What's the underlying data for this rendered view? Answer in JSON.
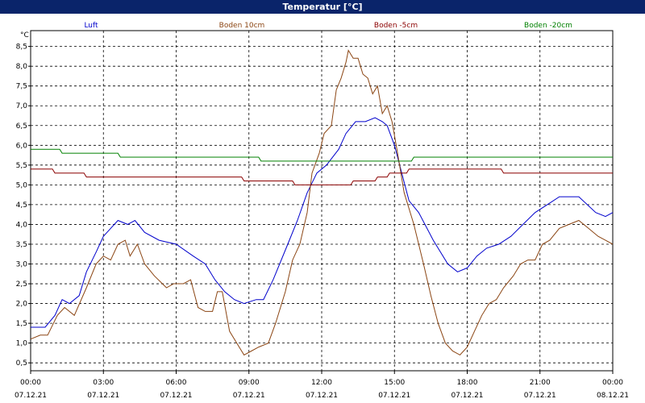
{
  "window": {
    "title": "Temperatur [°C]"
  },
  "chart_data": {
    "type": "line",
    "title": "Temperatur [°C]",
    "ylabel": "°C",
    "ylim": [
      0.3,
      8.9
    ],
    "xlim": [
      0,
      24
    ],
    "yticks": [
      "0,5",
      "1,0",
      "1,5",
      "2,0",
      "2,5",
      "3,0",
      "3,5",
      "4,0",
      "4,5",
      "5,0",
      "5,5",
      "6,0",
      "6,5",
      "7,0",
      "7,5",
      "8,0",
      "8,5"
    ],
    "xticks": [
      {
        "time": "00:00",
        "date": "07.12.21"
      },
      {
        "time": "03:00",
        "date": "07.12.21"
      },
      {
        "time": "06:00",
        "date": "07.12.21"
      },
      {
        "time": "09:00",
        "date": "07.12.21"
      },
      {
        "time": "12:00",
        "date": "07.12.21"
      },
      {
        "time": "15:00",
        "date": "07.12.21"
      },
      {
        "time": "18:00",
        "date": "07.12.21"
      },
      {
        "time": "21:00",
        "date": "07.12.21"
      },
      {
        "time": "00:00",
        "date": "08.12.21"
      }
    ],
    "grid": true,
    "legend_position": "top",
    "series": [
      {
        "name": "Luft",
        "color": "#0000cc",
        "points": [
          [
            0,
            1.4
          ],
          [
            0.6,
            1.4
          ],
          [
            1,
            1.7
          ],
          [
            1.3,
            2.1
          ],
          [
            1.6,
            2.0
          ],
          [
            2,
            2.2
          ],
          [
            2.3,
            2.8
          ],
          [
            2.7,
            3.3
          ],
          [
            3,
            3.7
          ],
          [
            3.3,
            3.9
          ],
          [
            3.6,
            4.1
          ],
          [
            4,
            4.0
          ],
          [
            4.3,
            4.1
          ],
          [
            4.7,
            3.8
          ],
          [
            5.3,
            3.6
          ],
          [
            6,
            3.5
          ],
          [
            6.7,
            3.2
          ],
          [
            7.2,
            3.0
          ],
          [
            7.6,
            2.6
          ],
          [
            8,
            2.3
          ],
          [
            8.4,
            2.1
          ],
          [
            8.8,
            2.0
          ],
          [
            9.3,
            2.1
          ],
          [
            9.6,
            2.1
          ],
          [
            10,
            2.6
          ],
          [
            10.6,
            3.5
          ],
          [
            11,
            4.1
          ],
          [
            11.4,
            4.8
          ],
          [
            11.8,
            5.3
          ],
          [
            12.2,
            5.5
          ],
          [
            12.7,
            5.9
          ],
          [
            13,
            6.3
          ],
          [
            13.4,
            6.6
          ],
          [
            13.8,
            6.6
          ],
          [
            14.2,
            6.7
          ],
          [
            14.5,
            6.6
          ],
          [
            14.7,
            6.5
          ],
          [
            15,
            6.0
          ],
          [
            15.3,
            5.3
          ],
          [
            15.6,
            4.6
          ],
          [
            16,
            4.3
          ],
          [
            16.6,
            3.6
          ],
          [
            17.2,
            3.0
          ],
          [
            17.6,
            2.8
          ],
          [
            18,
            2.9
          ],
          [
            18.4,
            3.2
          ],
          [
            18.8,
            3.4
          ],
          [
            19.3,
            3.5
          ],
          [
            19.8,
            3.7
          ],
          [
            20.3,
            4.0
          ],
          [
            20.8,
            4.3
          ],
          [
            21.3,
            4.5
          ],
          [
            21.8,
            4.7
          ],
          [
            22.6,
            4.7
          ],
          [
            23.3,
            4.3
          ],
          [
            23.7,
            4.2
          ],
          [
            24,
            4.3
          ]
        ]
      },
      {
        "name": "Boden 10cm",
        "color": "#8b4513",
        "points": [
          [
            0,
            1.1
          ],
          [
            0.4,
            1.2
          ],
          [
            0.7,
            1.2
          ],
          [
            1.1,
            1.7
          ],
          [
            1.4,
            1.9
          ],
          [
            1.8,
            1.7
          ],
          [
            2.3,
            2.4
          ],
          [
            2.7,
            3.0
          ],
          [
            3,
            3.2
          ],
          [
            3.3,
            3.1
          ],
          [
            3.6,
            3.5
          ],
          [
            3.9,
            3.6
          ],
          [
            4.1,
            3.2
          ],
          [
            4.4,
            3.5
          ],
          [
            4.7,
            3.0
          ],
          [
            5.1,
            2.7
          ],
          [
            5.6,
            2.4
          ],
          [
            5.9,
            2.5
          ],
          [
            6.3,
            2.5
          ],
          [
            6.6,
            2.6
          ],
          [
            6.9,
            1.9
          ],
          [
            7.2,
            1.8
          ],
          [
            7.5,
            1.8
          ],
          [
            7.7,
            2.3
          ],
          [
            7.9,
            2.3
          ],
          [
            8.2,
            1.3
          ],
          [
            8.5,
            1.0
          ],
          [
            8.8,
            0.7
          ],
          [
            9.1,
            0.8
          ],
          [
            9.4,
            0.9
          ],
          [
            9.8,
            1.0
          ],
          [
            10.1,
            1.5
          ],
          [
            10.5,
            2.3
          ],
          [
            10.8,
            3.1
          ],
          [
            11.1,
            3.5
          ],
          [
            11.4,
            4.3
          ],
          [
            11.6,
            5.3
          ],
          [
            11.9,
            5.8
          ],
          [
            12.1,
            6.3
          ],
          [
            12.4,
            6.5
          ],
          [
            12.6,
            7.4
          ],
          [
            12.8,
            7.7
          ],
          [
            13,
            8.1
          ],
          [
            13.1,
            8.4
          ],
          [
            13.3,
            8.2
          ],
          [
            13.5,
            8.2
          ],
          [
            13.7,
            7.8
          ],
          [
            13.9,
            7.7
          ],
          [
            14.1,
            7.3
          ],
          [
            14.3,
            7.5
          ],
          [
            14.5,
            6.8
          ],
          [
            14.7,
            7.0
          ],
          [
            14.9,
            6.6
          ],
          [
            15.1,
            5.9
          ],
          [
            15.4,
            4.8
          ],
          [
            15.8,
            4.0
          ],
          [
            16.2,
            3.0
          ],
          [
            16.5,
            2.2
          ],
          [
            16.8,
            1.5
          ],
          [
            17.1,
            1.0
          ],
          [
            17.4,
            0.8
          ],
          [
            17.7,
            0.7
          ],
          [
            18,
            0.9
          ],
          [
            18.3,
            1.3
          ],
          [
            18.6,
            1.7
          ],
          [
            18.9,
            2.0
          ],
          [
            19.2,
            2.1
          ],
          [
            19.5,
            2.4
          ],
          [
            19.9,
            2.7
          ],
          [
            20.2,
            3.0
          ],
          [
            20.5,
            3.1
          ],
          [
            20.8,
            3.1
          ],
          [
            21.1,
            3.5
          ],
          [
            21.4,
            3.6
          ],
          [
            21.8,
            3.9
          ],
          [
            22.2,
            4.0
          ],
          [
            22.6,
            4.1
          ],
          [
            23,
            3.9
          ],
          [
            23.4,
            3.7
          ],
          [
            23.7,
            3.6
          ],
          [
            24,
            3.5
          ]
        ]
      },
      {
        "name": "Boden -5cm",
        "color": "#8b0000",
        "points": [
          [
            0,
            5.4
          ],
          [
            0.9,
            5.4
          ],
          [
            1,
            5.3
          ],
          [
            2.2,
            5.3
          ],
          [
            2.3,
            5.2
          ],
          [
            8.7,
            5.2
          ],
          [
            8.8,
            5.1
          ],
          [
            10.8,
            5.1
          ],
          [
            10.9,
            5.0
          ],
          [
            13.2,
            5.0
          ],
          [
            13.3,
            5.1
          ],
          [
            14.2,
            5.1
          ],
          [
            14.3,
            5.2
          ],
          [
            14.7,
            5.2
          ],
          [
            14.8,
            5.3
          ],
          [
            15.5,
            5.3
          ],
          [
            15.6,
            5.4
          ],
          [
            19.4,
            5.4
          ],
          [
            19.5,
            5.3
          ],
          [
            24,
            5.3
          ]
        ]
      },
      {
        "name": "Boden -20cm",
        "color": "#008000",
        "points": [
          [
            0,
            5.9
          ],
          [
            1.2,
            5.9
          ],
          [
            1.3,
            5.8
          ],
          [
            3.6,
            5.8
          ],
          [
            3.7,
            5.7
          ],
          [
            9.4,
            5.7
          ],
          [
            9.5,
            5.6
          ],
          [
            15.7,
            5.6
          ],
          [
            15.8,
            5.7
          ],
          [
            24,
            5.7
          ]
        ]
      }
    ]
  }
}
